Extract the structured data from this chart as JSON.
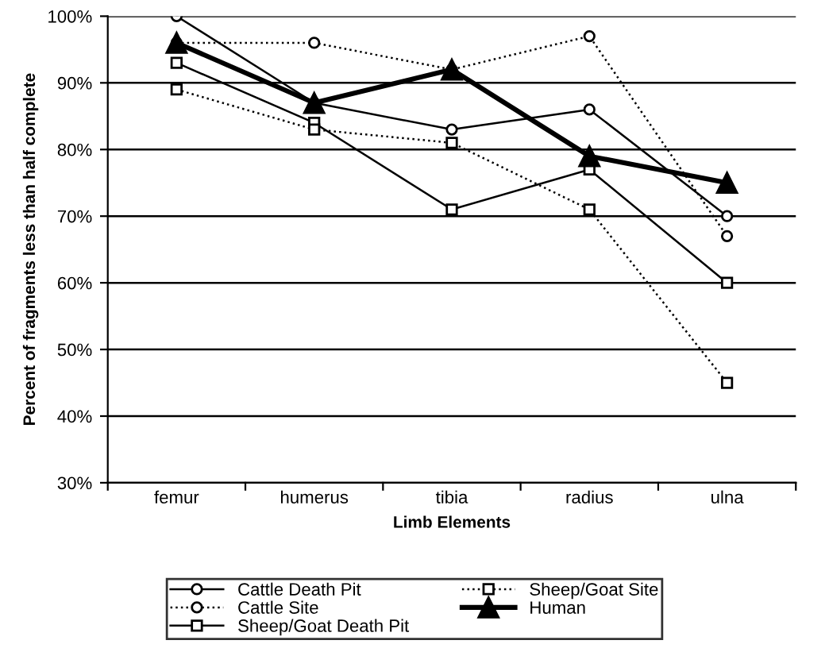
{
  "chart_data": {
    "type": "line",
    "xlabel": "Limb Elements",
    "ylabel": "Percent of fragments less than half complete",
    "categories": [
      "femur",
      "humerus",
      "tibia",
      "radius",
      "ulna"
    ],
    "series": [
      {
        "name": "Cattle Death Pit",
        "color": "#000000",
        "marker": "circle",
        "line_style": "solid",
        "values": [
          100,
          87,
          83,
          86,
          70
        ]
      },
      {
        "name": "Cattle Site",
        "color": "#000000",
        "marker": "circle",
        "line_style": "dotted",
        "values": [
          96,
          96,
          92,
          97,
          67
        ]
      },
      {
        "name": "Sheep/Goat Death Pit",
        "color": "#000000",
        "marker": "square",
        "line_style": "solid",
        "values": [
          93,
          84,
          71,
          77,
          60
        ]
      },
      {
        "name": "Sheep/Goat Site",
        "color": "#000000",
        "marker": "square",
        "line_style": "dotted",
        "values": [
          89,
          83,
          81,
          71,
          45
        ]
      },
      {
        "name": "Human",
        "color": "#000000",
        "marker": "triangle",
        "line_style": "solid",
        "values": [
          96,
          87,
          92,
          79,
          75
        ]
      }
    ],
    "ylim": [
      30,
      100
    ],
    "yticks": [
      {
        "value": 30,
        "label": "30%"
      },
      {
        "value": 40,
        "label": "40%"
      },
      {
        "value": 50,
        "label": "50%"
      },
      {
        "value": 60,
        "label": "60%"
      },
      {
        "value": 70,
        "label": "70%"
      },
      {
        "value": 80,
        "label": "80%"
      },
      {
        "value": 90,
        "label": "90%"
      },
      {
        "value": 100,
        "label": "100%"
      }
    ],
    "grid": "y",
    "legend": "bottom"
  }
}
